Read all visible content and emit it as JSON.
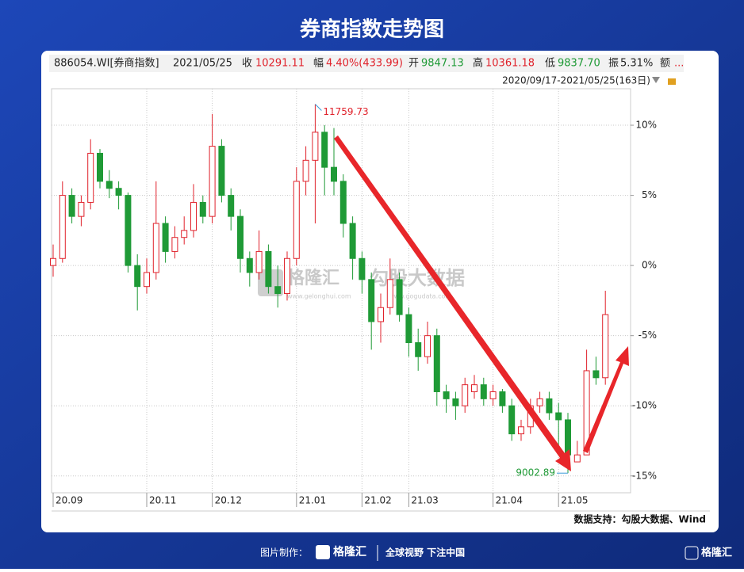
{
  "header": {
    "title": "券商指数走势图"
  },
  "info_bar": [
    "886054.WI[券商指数]",
    "2021/05/25",
    "收",
    "10291.11",
    "幅",
    "4.40%(433.99)",
    "开",
    "9847.13",
    "高",
    "10361.18",
    "低",
    "9837.70",
    "振",
    "5.31%",
    "额",
    "..."
  ],
  "range_label": "2020/09/17-2021/05/25(163日)",
  "watermarks": [
    "格隆汇",
    "www.gelonghui.com",
    "勾股大数据",
    "www.gogudata.com"
  ],
  "source": "数据支持：勾股大数据、Wind",
  "footer": {
    "made_by": "图片制作：",
    "brand": "格隆汇",
    "slogan": "全球视野 下注中国",
    "corner_brand": "格隆汇"
  },
  "chart_data": {
    "type": "candlestick",
    "categories": [
      "20.09",
      null,
      null,
      null,
      null,
      null,
      null,
      null,
      null,
      null,
      "20.11",
      null,
      null,
      null,
      null,
      null,
      null,
      "20.12",
      null,
      null,
      null,
      null,
      null,
      null,
      null,
      null,
      "21.01",
      null,
      null,
      null,
      null,
      null,
      null,
      "21.02",
      null,
      null,
      null,
      null,
      "21.03",
      null,
      null,
      null,
      null,
      null,
      null,
      null,
      null,
      "21.04",
      null,
      null,
      null,
      null,
      null,
      null,
      "21.05",
      null,
      null,
      null,
      null,
      null
    ],
    "open": [
      0,
      0.5,
      5,
      3.5,
      4.5,
      8,
      6,
      5.5,
      5,
      0,
      -1.5,
      -0.5,
      3,
      1,
      2,
      2.5,
      4.5,
      3.5,
      8.5,
      5,
      3.5,
      0.5,
      -0.5,
      1,
      -1.5,
      -2,
      0.5,
      6,
      7.5,
      9.5,
      7,
      6,
      3,
      0.5,
      -1,
      -4,
      -3,
      -1,
      -3.5,
      -5.5,
      -6.5,
      -5,
      -9,
      -9.5,
      -10,
      -9,
      -8.5,
      -9.5,
      -9,
      -10,
      -12,
      -11.5,
      -10,
      -9.5,
      -10.5,
      -11,
      -14,
      -13.5,
      -7.5,
      -8
    ],
    "high": [
      1.5,
      6,
      5.5,
      5,
      9,
      8.3,
      6.8,
      6,
      5.2,
      0.8,
      0.5,
      6,
      3.5,
      2.8,
      3.5,
      5.8,
      5,
      10.8,
      9,
      5.5,
      4,
      1,
      2.5,
      1.5,
      0,
      1,
      7,
      8.5,
      11.5,
      10,
      9.8,
      6.5,
      3.5,
      1,
      -0.5,
      -2,
      0.5,
      -0.5,
      -3,
      -4.5,
      -4,
      -4.5,
      -8.5,
      -9,
      -8,
      -7.8,
      -8,
      -8.5,
      -8.8,
      -9.5,
      -11,
      -9.5,
      -9,
      -9,
      -9.8,
      -10.5,
      -12.5,
      -6,
      -6.5,
      -1.8
    ],
    "low": [
      -0.8,
      0.2,
      3,
      2.8,
      4,
      5.5,
      4.8,
      4,
      -0.5,
      -3.2,
      -2,
      -1,
      0.2,
      0.5,
      1.5,
      2,
      3,
      3,
      4.5,
      2.5,
      -0.5,
      -1.5,
      -1,
      -2,
      -3,
      -2.5,
      0,
      5,
      3,
      5,
      5,
      2,
      -1,
      -2,
      -6,
      -5.5,
      -3.5,
      -4,
      -6.5,
      -7.5,
      -7,
      -10,
      -10.5,
      -11,
      -10.5,
      -9.5,
      -10,
      -10,
      -10.5,
      -12.5,
      -12.5,
      -12,
      -10.5,
      -11,
      -13,
      -14.8,
      -14,
      -13.5,
      -8.5,
      -8.5
    ],
    "close": [
      0.5,
      5,
      3.5,
      4.5,
      8,
      6,
      5.5,
      5,
      0,
      -1.5,
      -0.5,
      3,
      1,
      2,
      2.5,
      4.5,
      3.5,
      8.5,
      5,
      3.5,
      0.5,
      -0.5,
      1,
      -1.5,
      -2,
      0.5,
      6,
      7.5,
      9.5,
      7,
      6,
      3,
      0.5,
      -1,
      -4,
      -3,
      -1,
      -3.5,
      -5.5,
      -6.5,
      -5,
      -9,
      -9.5,
      -10,
      -8.5,
      -8.5,
      -9.5,
      -9,
      -10,
      -12,
      -11.5,
      -10,
      -9.5,
      -10.5,
      -11,
      -13.5,
      -13.5,
      -7.5,
      -8,
      -3.5
    ],
    "up_color": "#e0222b",
    "down_color": "#1f9a36",
    "ylim": [
      -16.2,
      12.6
    ],
    "yticks": [
      {
        "value": 10,
        "label": "10%"
      },
      {
        "value": 5,
        "label": "5%"
      },
      {
        "value": 0,
        "label": "0%"
      },
      {
        "value": -5,
        "label": "-5%"
      },
      {
        "value": -10,
        "label": "-10%"
      },
      {
        "value": -15,
        "label": "-15%"
      }
    ],
    "grid": true,
    "annotations": [
      {
        "text": "11759.73",
        "index": 28
      },
      {
        "text": "9002.89",
        "index": 55
      }
    ]
  }
}
